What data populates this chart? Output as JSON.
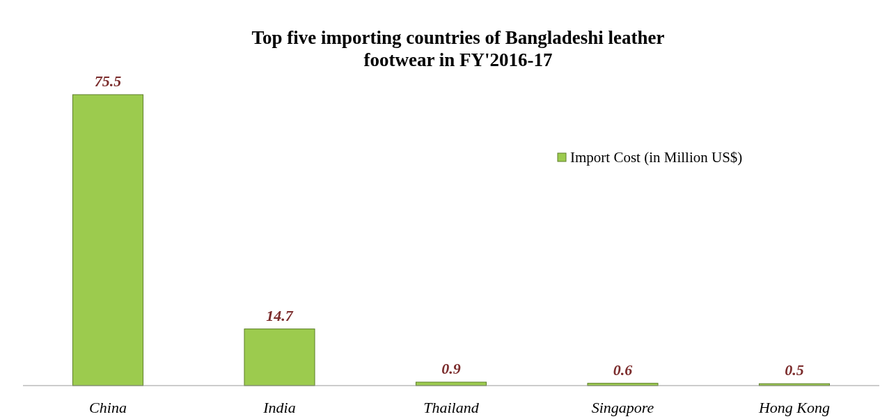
{
  "chart_data": {
    "type": "bar",
    "title": "Top five importing countries of Bangladeshi leather\nfootwear in FY'2016-17",
    "categories": [
      "China",
      "India",
      "Thailand",
      "Singapore",
      "Hong Kong"
    ],
    "series": [
      {
        "name": "Import Cost (in Million US$)",
        "color": "#9ccb4e",
        "values": [
          75.5,
          14.7,
          0.9,
          0.6,
          0.5
        ]
      }
    ],
    "data_labels": true,
    "legend": "top right",
    "grid": false
  }
}
